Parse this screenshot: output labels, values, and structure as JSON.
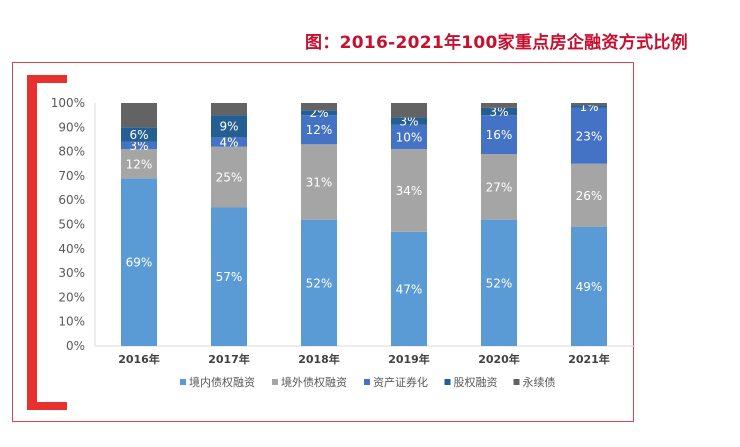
{
  "title": "图：2016-2021年100家重点房企融资方式比例",
  "chart_data": {
    "type": "bar",
    "stacked": true,
    "title": "图：2016-2021年100家重点房企融资方式比例",
    "xlabel": "",
    "ylabel": "",
    "ylim": [
      0,
      100
    ],
    "yticks": [
      "0%",
      "10%",
      "20%",
      "30%",
      "40%",
      "50%",
      "60%",
      "70%",
      "80%",
      "90%",
      "100%"
    ],
    "categories": [
      "2016年",
      "2017年",
      "2018年",
      "2019年",
      "2020年",
      "2021年"
    ],
    "legend_position": "bottom",
    "series": [
      {
        "name": "境内债权融资",
        "color": "#5b9bd5",
        "values": [
          69,
          57,
          52,
          47,
          52,
          49
        ],
        "labels": [
          "69%",
          "57%",
          "52%",
          "47%",
          "52%",
          "49%"
        ]
      },
      {
        "name": "境外债权融资",
        "color": "#a5a5a5",
        "values": [
          12,
          25,
          31,
          34,
          27,
          26
        ],
        "labels": [
          "12%",
          "25%",
          "31%",
          "34%",
          "27%",
          "26%"
        ]
      },
      {
        "name": "资产证券化",
        "color": "#4472c4",
        "values": [
          3,
          4,
          12,
          10,
          16,
          23
        ],
        "labels": [
          "3%",
          "4%",
          "12%",
          "10%",
          "16%",
          "23%"
        ]
      },
      {
        "name": "股权融资",
        "color": "#255e91",
        "values": [
          6,
          9,
          2,
          3,
          3,
          1
        ],
        "labels": [
          "6%",
          "9%",
          "2%",
          "3%",
          "3%",
          "1%"
        ]
      },
      {
        "name": "永续债",
        "color": "#636363",
        "values": [
          10,
          5,
          3,
          6,
          2,
          1
        ],
        "labels": [
          null,
          null,
          null,
          null,
          null,
          null
        ]
      }
    ]
  }
}
